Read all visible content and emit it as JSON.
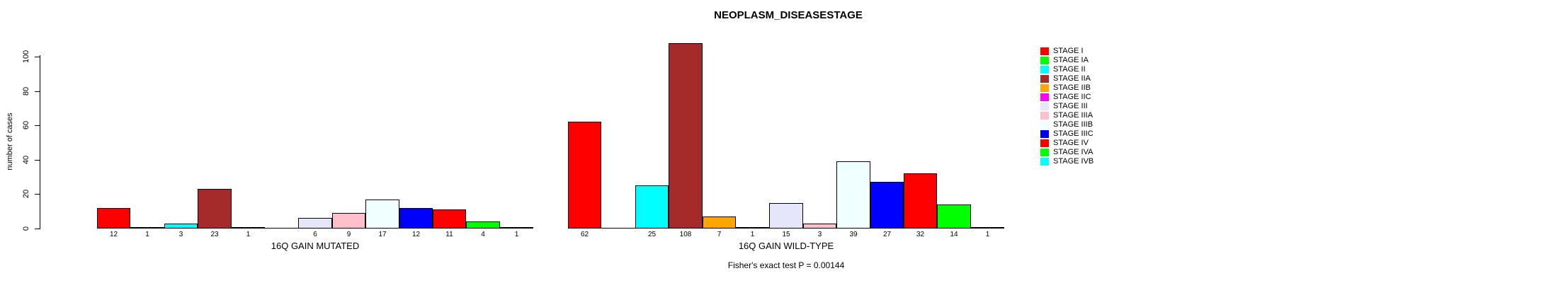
{
  "chart_data": {
    "type": "bar",
    "title": "NEOPLASM_DISEASESTAGE",
    "ylabel": "number of cases",
    "xlabel": "",
    "ylim": [
      0,
      100
    ],
    "yticks": [
      0,
      20,
      40,
      60,
      80,
      100
    ],
    "grid": false,
    "legend_position": "right-outside",
    "bar_value_labels_shown": true,
    "categories": [
      "STAGE I",
      "STAGE IA",
      "STAGE II",
      "STAGE IIA",
      "STAGE IIB",
      "STAGE IIC",
      "STAGE III",
      "STAGE IIIA",
      "STAGE IIIB",
      "STAGE IIIC",
      "STAGE IV",
      "STAGE IVA",
      "STAGE IVB"
    ],
    "colors": [
      "#FF0000",
      "#00FF00",
      "#00FFFF",
      "#A52A2A",
      "#FFA500",
      "#FF00FF",
      "#E6E6FA",
      "#FFC0CB",
      "#F0FFFF",
      "#0000FF",
      "#FF0000",
      "#00FF00",
      "#00FFFF"
    ],
    "series": [
      {
        "name": "16Q GAIN MUTATED",
        "values": [
          12,
          1,
          3,
          23,
          1,
          0,
          6,
          9,
          17,
          12,
          11,
          4,
          1
        ]
      },
      {
        "name": "16Q GAIN WILD-TYPE",
        "values": [
          62,
          0,
          25,
          108,
          7,
          1,
          15,
          3,
          39,
          27,
          32,
          14,
          1
        ]
      }
    ],
    "annotation": "Fisher's exact test P = 0.00144"
  }
}
